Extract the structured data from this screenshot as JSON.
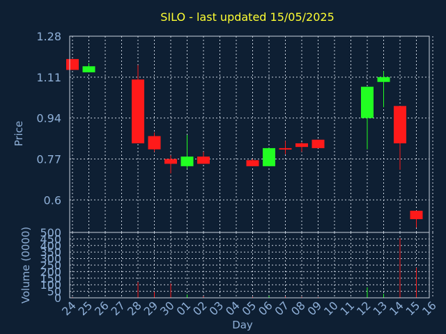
{
  "chart_data": [
    {
      "type": "candlestick",
      "title": "SILO - last updated 15/05/2025",
      "ylabel": "Price",
      "ylim": [
        0.465,
        1.28
      ],
      "yticks": [
        1.28,
        1.11,
        0.94,
        0.77,
        0.6
      ],
      "categories": [
        "24",
        "25",
        "26",
        "27",
        "28",
        "29",
        "30",
        "01",
        "02",
        "03",
        "04",
        "05",
        "06",
        "07",
        "08",
        "09",
        "10",
        "11",
        "12",
        "13",
        "14",
        "15",
        "16"
      ],
      "series": [
        {
          "candles": [
            {
              "day": "24",
              "open": 1.185,
              "close": 1.14,
              "high": 1.185,
              "low": 1.14
            },
            {
              "day": "25",
              "open": 1.13,
              "close": 1.155,
              "high": 1.168,
              "low": 1.13
            },
            {
              "day": "28",
              "open": 1.1,
              "close": 0.835,
              "high": 1.16,
              "low": 0.835
            },
            {
              "day": "29",
              "open": 0.865,
              "close": 0.81,
              "high": 0.88,
              "low": 0.8
            },
            {
              "day": "30",
              "open": 0.77,
              "close": 0.75,
              "high": 0.785,
              "low": 0.71
            },
            {
              "day": "01",
              "open": 0.74,
              "close": 0.78,
              "high": 0.87,
              "low": 0.73
            },
            {
              "day": "02",
              "open": 0.78,
              "close": 0.75,
              "high": 0.8,
              "low": 0.75
            },
            {
              "day": "05",
              "open": 0.765,
              "close": 0.74,
              "high": 0.77,
              "low": 0.74
            },
            {
              "day": "06",
              "open": 0.74,
              "close": 0.815,
              "high": 0.815,
              "low": 0.74
            },
            {
              "day": "07",
              "open": 0.815,
              "close": 0.81,
              "high": 0.845,
              "low": 0.79
            },
            {
              "day": "08",
              "open": 0.835,
              "close": 0.82,
              "high": 0.84,
              "low": 0.8
            },
            {
              "day": "09",
              "open": 0.85,
              "close": 0.815,
              "high": 0.85,
              "low": 0.815
            },
            {
              "day": "12",
              "open": 0.94,
              "close": 1.07,
              "high": 1.07,
              "low": 0.81
            },
            {
              "day": "13",
              "open": 1.09,
              "close": 1.11,
              "high": 1.135,
              "low": 0.985
            },
            {
              "day": "14",
              "open": 0.99,
              "close": 0.835,
              "high": 0.99,
              "low": 0.725
            },
            {
              "day": "15",
              "open": 0.555,
              "close": 0.52,
              "high": 0.555,
              "low": 0.485
            }
          ]
        }
      ]
    },
    {
      "type": "bar",
      "xlabel": "Day",
      "ylabel": "Volume (0000)",
      "ylim": [
        0,
        500
      ],
      "yticks": [
        500,
        450,
        400,
        350,
        300,
        250,
        200,
        150,
        100,
        50,
        0
      ],
      "categories": [
        "24",
        "25",
        "26",
        "27",
        "28",
        "29",
        "30",
        "01",
        "02",
        "03",
        "04",
        "05",
        "06",
        "07",
        "08",
        "09",
        "10",
        "11",
        "12",
        "13",
        "14",
        "15",
        "16"
      ],
      "series": [
        {
          "bars": [
            {
              "day": "24",
              "value": 5,
              "color": "#ff1a1a"
            },
            {
              "day": "25",
              "value": 3,
              "color": "#22ff22"
            },
            {
              "day": "28",
              "value": 120,
              "color": "#ff1a1a"
            },
            {
              "day": "29",
              "value": 45,
              "color": "#ff1a1a"
            },
            {
              "day": "30",
              "value": 110,
              "color": "#ff1a1a"
            },
            {
              "day": "01",
              "value": 25,
              "color": "#22ff22"
            },
            {
              "day": "02",
              "value": 12,
              "color": "#ff1a1a"
            },
            {
              "day": "05",
              "value": 8,
              "color": "#ff1a1a"
            },
            {
              "day": "06",
              "value": 15,
              "color": "#22ff22"
            },
            {
              "day": "07",
              "value": 10,
              "color": "#ff1a1a"
            },
            {
              "day": "08",
              "value": 8,
              "color": "#ff1a1a"
            },
            {
              "day": "09",
              "value": 6,
              "color": "#ff1a1a"
            },
            {
              "day": "12",
              "value": 80,
              "color": "#22ff22"
            },
            {
              "day": "13",
              "value": 30,
              "color": "#22ff22"
            },
            {
              "day": "14",
              "value": 455,
              "color": "#ff1a1a"
            },
            {
              "day": "15",
              "value": 230,
              "color": "#ff1a1a"
            }
          ]
        }
      ]
    }
  ],
  "colors": {
    "up": "#22ff22",
    "down": "#ff1a1a",
    "title": "#ffff33",
    "text": "#8fb0d8",
    "background": "#0e1f33",
    "grid": "#c9d3df"
  }
}
